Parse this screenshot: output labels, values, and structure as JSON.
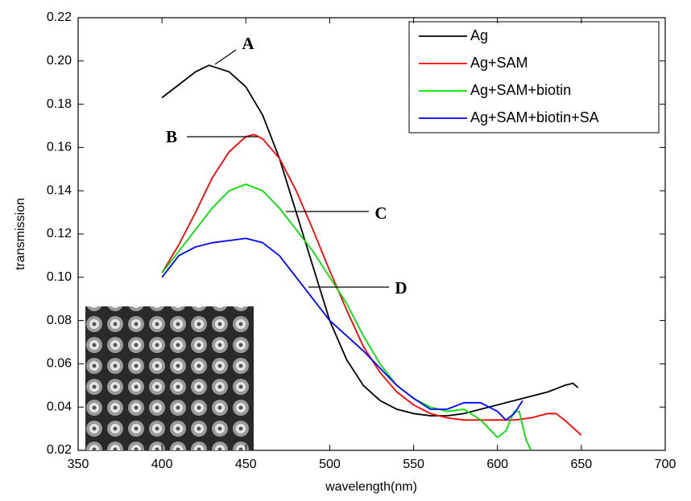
{
  "chart_data": {
    "type": "line",
    "xlabel": "wavelength(nm)",
    "ylabel": "transmission",
    "xlim": [
      350,
      700
    ],
    "xticks": [
      350,
      400,
      450,
      500,
      550,
      600,
      650,
      700
    ],
    "ylim": [
      0.02,
      0.22
    ],
    "yticks": [
      0.02,
      0.04,
      0.06,
      0.08,
      {
        "value": 0.1,
        "label": "0.10"
      },
      0.12,
      0.14,
      0.16,
      0.18,
      {
        "value": 0.2,
        "label": "0.20"
      },
      0.22
    ],
    "legend": "upper right",
    "series": [
      {
        "name": "Ag",
        "color": "#000000",
        "x": [
          400,
          410,
          420,
          428,
          440,
          450,
          460,
          470,
          480,
          490,
          500,
          510,
          520,
          530,
          540,
          550,
          560,
          570,
          580,
          590,
          600,
          610,
          620,
          630,
          640,
          645,
          648
        ],
        "values": [
          0.183,
          0.189,
          0.195,
          0.198,
          0.195,
          0.188,
          0.175,
          0.155,
          0.13,
          0.105,
          0.08,
          0.062,
          0.05,
          0.043,
          0.039,
          0.037,
          0.036,
          0.036,
          0.037,
          0.039,
          0.041,
          0.043,
          0.045,
          0.047,
          0.05,
          0.051,
          0.049
        ]
      },
      {
        "name": "Ag+SAM",
        "color": "#ff0000",
        "x": [
          400,
          410,
          420,
          430,
          440,
          450,
          455,
          460,
          470,
          480,
          490,
          500,
          510,
          520,
          530,
          540,
          550,
          560,
          570,
          580,
          590,
          600,
          610,
          620,
          630,
          635,
          640,
          650
        ],
        "values": [
          0.102,
          0.115,
          0.13,
          0.146,
          0.158,
          0.165,
          0.166,
          0.164,
          0.155,
          0.14,
          0.122,
          0.103,
          0.085,
          0.068,
          0.056,
          0.047,
          0.041,
          0.037,
          0.035,
          0.034,
          0.034,
          0.034,
          0.034,
          0.035,
          0.037,
          0.037,
          0.034,
          0.027
        ]
      },
      {
        "name": "Ag+SAM+biotin",
        "color": "#00e000",
        "x": [
          400,
          410,
          420,
          430,
          440,
          450,
          460,
          470,
          480,
          490,
          500,
          510,
          520,
          530,
          540,
          550,
          560,
          570,
          580,
          590,
          600,
          605,
          610,
          613,
          617,
          620
        ],
        "values": [
          0.102,
          0.112,
          0.122,
          0.132,
          0.14,
          0.143,
          0.14,
          0.132,
          0.122,
          0.112,
          0.1,
          0.088,
          0.073,
          0.06,
          0.05,
          0.044,
          0.04,
          0.038,
          0.039,
          0.034,
          0.026,
          0.029,
          0.038,
          0.038,
          0.025,
          0.02
        ]
      },
      {
        "name": "Ag+SAM+biotin+SA",
        "color": "#0000ff",
        "x": [
          400,
          410,
          420,
          430,
          440,
          450,
          460,
          470,
          480,
          490,
          500,
          510,
          520,
          530,
          540,
          550,
          560,
          570,
          580,
          590,
          600,
          605,
          610,
          615
        ],
        "values": [
          0.1,
          0.11,
          0.114,
          0.116,
          0.117,
          0.118,
          0.116,
          0.11,
          0.1,
          0.09,
          0.08,
          0.073,
          0.066,
          0.058,
          0.05,
          0.044,
          0.039,
          0.039,
          0.042,
          0.042,
          0.038,
          0.034,
          0.037,
          0.043
        ]
      }
    ],
    "annotations": [
      "A",
      "B",
      "C",
      "D"
    ]
  }
}
